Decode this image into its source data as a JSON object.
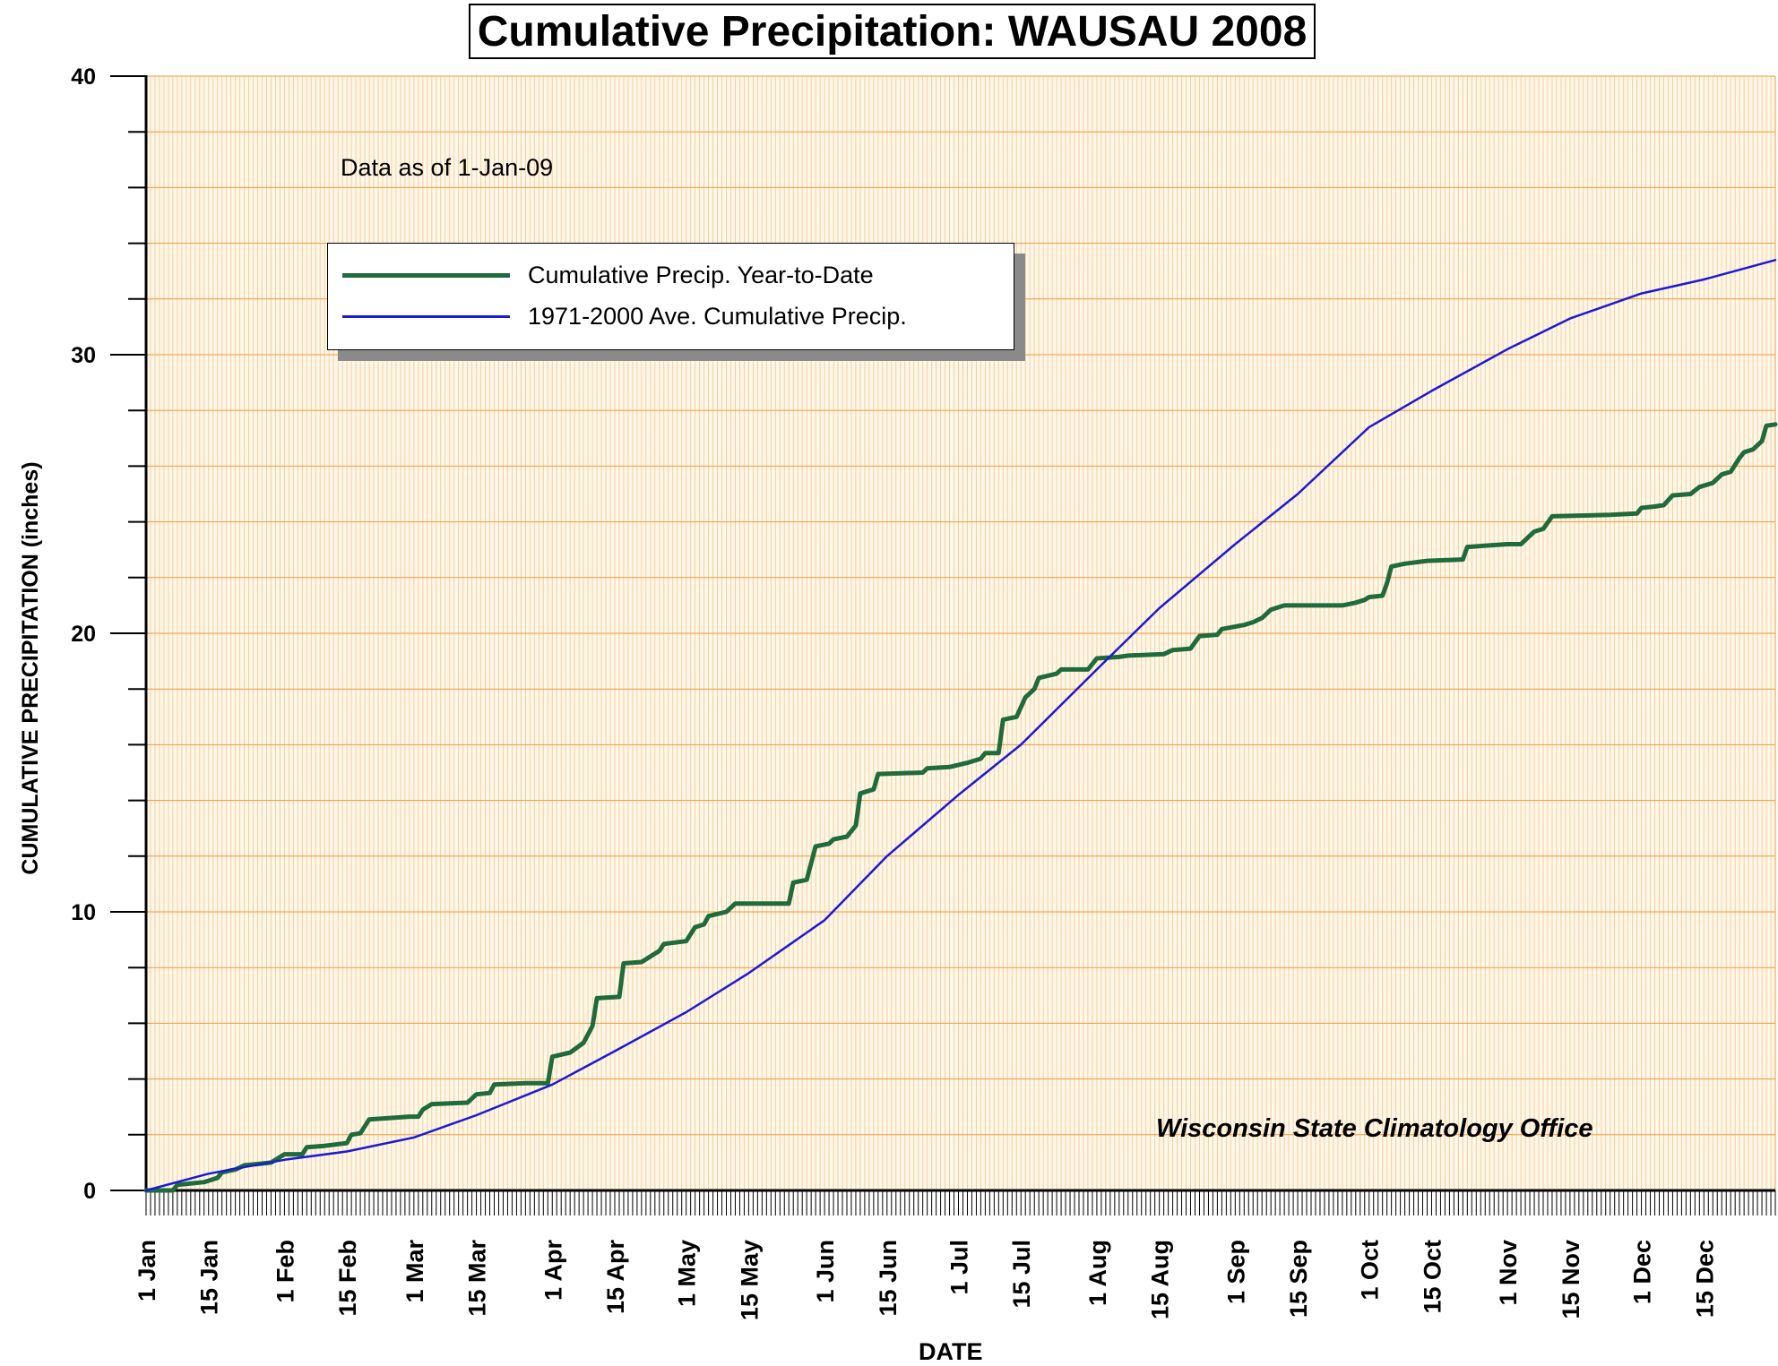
{
  "chart_data": {
    "type": "line",
    "title": "Cumulative Precipitation: WAUSAU 2008",
    "xlabel": "DATE",
    "ylabel": "CUMULATIVE PRECIPITATION (inches)",
    "annotation": "Data as of 1-Jan-09",
    "credit": "Wisconsin State Climatology Office",
    "ylim": [
      0,
      40
    ],
    "y_ticks": [
      "0",
      "10",
      "20",
      "30",
      "40"
    ],
    "x_tick_labels": [
      "1 Jan",
      "15 Jan",
      "1 Feb",
      "15 Feb",
      "1 Mar",
      "15 Mar",
      "1 Apr",
      "15 Apr",
      "1 May",
      "15 May",
      "1 Jun",
      "15 Jun",
      "1 Jul",
      "15 Jul",
      "1 Aug",
      "15 Aug",
      "1 Sep",
      "15 Sep",
      "1 Oct",
      "15 Oct",
      "1 Nov",
      "15 Nov",
      "1 Dec",
      "15 Dec"
    ],
    "x_tick_dates": [
      "2008-01-01",
      "2008-01-15",
      "2008-02-01",
      "2008-02-15",
      "2008-03-01",
      "2008-03-15",
      "2008-04-01",
      "2008-04-15",
      "2008-05-01",
      "2008-05-15",
      "2008-06-01",
      "2008-06-15",
      "2008-07-01",
      "2008-07-15",
      "2008-08-01",
      "2008-08-15",
      "2008-09-01",
      "2008-09-15",
      "2008-10-01",
      "2008-10-15",
      "2008-11-01",
      "2008-11-15",
      "2008-12-01",
      "2008-12-15"
    ],
    "xlim": [
      "2008-01-01",
      "2008-12-31"
    ],
    "grid": true,
    "legend_position": "top-left",
    "series": [
      {
        "name": "Cumulative Precip. Year-to-Date",
        "color": "#1e6b3c",
        "points": [
          [
            "2008-01-01",
            0.0
          ],
          [
            "2008-01-07",
            0.0
          ],
          [
            "2008-01-08",
            0.2
          ],
          [
            "2008-01-14",
            0.3
          ],
          [
            "2008-01-17",
            0.45
          ],
          [
            "2008-01-18",
            0.65
          ],
          [
            "2008-01-21",
            0.75
          ],
          [
            "2008-01-23",
            0.9
          ],
          [
            "2008-01-26",
            0.95
          ],
          [
            "2008-01-29",
            1.0
          ],
          [
            "2008-02-01",
            1.3
          ],
          [
            "2008-02-05",
            1.3
          ],
          [
            "2008-02-06",
            1.55
          ],
          [
            "2008-02-10",
            1.6
          ],
          [
            "2008-02-15",
            1.7
          ],
          [
            "2008-02-16",
            2.0
          ],
          [
            "2008-02-18",
            2.05
          ],
          [
            "2008-02-20",
            2.55
          ],
          [
            "2008-02-29",
            2.65
          ],
          [
            "2008-03-02",
            2.65
          ],
          [
            "2008-03-03",
            2.9
          ],
          [
            "2008-03-05",
            3.1
          ],
          [
            "2008-03-13",
            3.15
          ],
          [
            "2008-03-15",
            3.45
          ],
          [
            "2008-03-18",
            3.5
          ],
          [
            "2008-03-19",
            3.8
          ],
          [
            "2008-03-26",
            3.85
          ],
          [
            "2008-03-31",
            3.85
          ],
          [
            "2008-04-01",
            4.8
          ],
          [
            "2008-04-05",
            4.95
          ],
          [
            "2008-04-08",
            5.3
          ],
          [
            "2008-04-10",
            5.9
          ],
          [
            "2008-04-11",
            6.9
          ],
          [
            "2008-04-16",
            6.95
          ],
          [
            "2008-04-17",
            8.15
          ],
          [
            "2008-04-21",
            8.2
          ],
          [
            "2008-04-25",
            8.6
          ],
          [
            "2008-04-26",
            8.85
          ],
          [
            "2008-05-01",
            8.95
          ],
          [
            "2008-05-03",
            9.45
          ],
          [
            "2008-05-05",
            9.55
          ],
          [
            "2008-05-06",
            9.85
          ],
          [
            "2008-05-10",
            10.0
          ],
          [
            "2008-05-12",
            10.3
          ],
          [
            "2008-05-24",
            10.3
          ],
          [
            "2008-05-25",
            11.05
          ],
          [
            "2008-05-28",
            11.15
          ],
          [
            "2008-05-30",
            12.35
          ],
          [
            "2008-06-02",
            12.45
          ],
          [
            "2008-06-03",
            12.6
          ],
          [
            "2008-06-06",
            12.7
          ],
          [
            "2008-06-08",
            13.1
          ],
          [
            "2008-06-09",
            14.25
          ],
          [
            "2008-06-12",
            14.4
          ],
          [
            "2008-06-13",
            14.95
          ],
          [
            "2008-06-23",
            15.0
          ],
          [
            "2008-06-24",
            15.15
          ],
          [
            "2008-06-29",
            15.2
          ],
          [
            "2008-07-03",
            15.35
          ],
          [
            "2008-07-06",
            15.5
          ],
          [
            "2008-07-07",
            15.7
          ],
          [
            "2008-07-10",
            15.7
          ],
          [
            "2008-07-11",
            16.9
          ],
          [
            "2008-07-14",
            17.0
          ],
          [
            "2008-07-16",
            17.7
          ],
          [
            "2008-07-18",
            18.0
          ],
          [
            "2008-07-19",
            18.4
          ],
          [
            "2008-07-23",
            18.55
          ],
          [
            "2008-07-24",
            18.7
          ],
          [
            "2008-07-30",
            18.7
          ],
          [
            "2008-08-01",
            19.1
          ],
          [
            "2008-08-06",
            19.15
          ],
          [
            "2008-08-08",
            19.2
          ],
          [
            "2008-08-16",
            19.25
          ],
          [
            "2008-08-18",
            19.4
          ],
          [
            "2008-08-22",
            19.45
          ],
          [
            "2008-08-24",
            19.9
          ],
          [
            "2008-08-28",
            19.95
          ],
          [
            "2008-08-29",
            20.15
          ],
          [
            "2008-09-03",
            20.3
          ],
          [
            "2008-09-05",
            20.4
          ],
          [
            "2008-09-07",
            20.55
          ],
          [
            "2008-09-09",
            20.85
          ],
          [
            "2008-09-12",
            21.0
          ],
          [
            "2008-09-25",
            21.0
          ],
          [
            "2008-09-28",
            21.1
          ],
          [
            "2008-09-30",
            21.2
          ],
          [
            "2008-10-01",
            21.3
          ],
          [
            "2008-10-04",
            21.35
          ],
          [
            "2008-10-05",
            21.8
          ],
          [
            "2008-10-06",
            22.4
          ],
          [
            "2008-10-09",
            22.5
          ],
          [
            "2008-10-14",
            22.6
          ],
          [
            "2008-10-22",
            22.65
          ],
          [
            "2008-10-23",
            23.1
          ],
          [
            "2008-11-01",
            23.2
          ],
          [
            "2008-11-04",
            23.2
          ],
          [
            "2008-11-06",
            23.5
          ],
          [
            "2008-11-07",
            23.65
          ],
          [
            "2008-11-09",
            23.75
          ],
          [
            "2008-11-11",
            24.2
          ],
          [
            "2008-11-24",
            24.25
          ],
          [
            "2008-11-30",
            24.3
          ],
          [
            "2008-12-01",
            24.5
          ],
          [
            "2008-12-04",
            24.55
          ],
          [
            "2008-12-06",
            24.6
          ],
          [
            "2008-12-08",
            24.95
          ],
          [
            "2008-12-12",
            25.0
          ],
          [
            "2008-12-14",
            25.25
          ],
          [
            "2008-12-17",
            25.4
          ],
          [
            "2008-12-19",
            25.7
          ],
          [
            "2008-12-21",
            25.8
          ],
          [
            "2008-12-23",
            26.3
          ],
          [
            "2008-12-24",
            26.5
          ],
          [
            "2008-12-26",
            26.6
          ],
          [
            "2008-12-28",
            26.9
          ],
          [
            "2008-12-29",
            27.45
          ],
          [
            "2008-12-31",
            27.5
          ]
        ]
      },
      {
        "name": "1971-2000 Ave. Cumulative Precip.",
        "color": "#1a1ad8",
        "points": [
          [
            "2008-01-01",
            0.0
          ],
          [
            "2008-01-15",
            0.6
          ],
          [
            "2008-02-01",
            1.1
          ],
          [
            "2008-02-15",
            1.4
          ],
          [
            "2008-03-01",
            1.9
          ],
          [
            "2008-03-15",
            2.7
          ],
          [
            "2008-04-01",
            3.8
          ],
          [
            "2008-04-15",
            5.0
          ],
          [
            "2008-05-01",
            6.4
          ],
          [
            "2008-05-15",
            7.8
          ],
          [
            "2008-06-01",
            9.7
          ],
          [
            "2008-06-15",
            12.0
          ],
          [
            "2008-07-01",
            14.2
          ],
          [
            "2008-07-15",
            16.0
          ],
          [
            "2008-08-01",
            18.7
          ],
          [
            "2008-08-15",
            20.9
          ],
          [
            "2008-09-01",
            23.2
          ],
          [
            "2008-09-15",
            25.0
          ],
          [
            "2008-10-01",
            27.4
          ],
          [
            "2008-10-15",
            28.7
          ],
          [
            "2008-11-01",
            30.2
          ],
          [
            "2008-11-15",
            31.3
          ],
          [
            "2008-12-01",
            32.2
          ],
          [
            "2008-12-15",
            32.7
          ],
          [
            "2008-12-31",
            33.4
          ]
        ]
      }
    ]
  }
}
